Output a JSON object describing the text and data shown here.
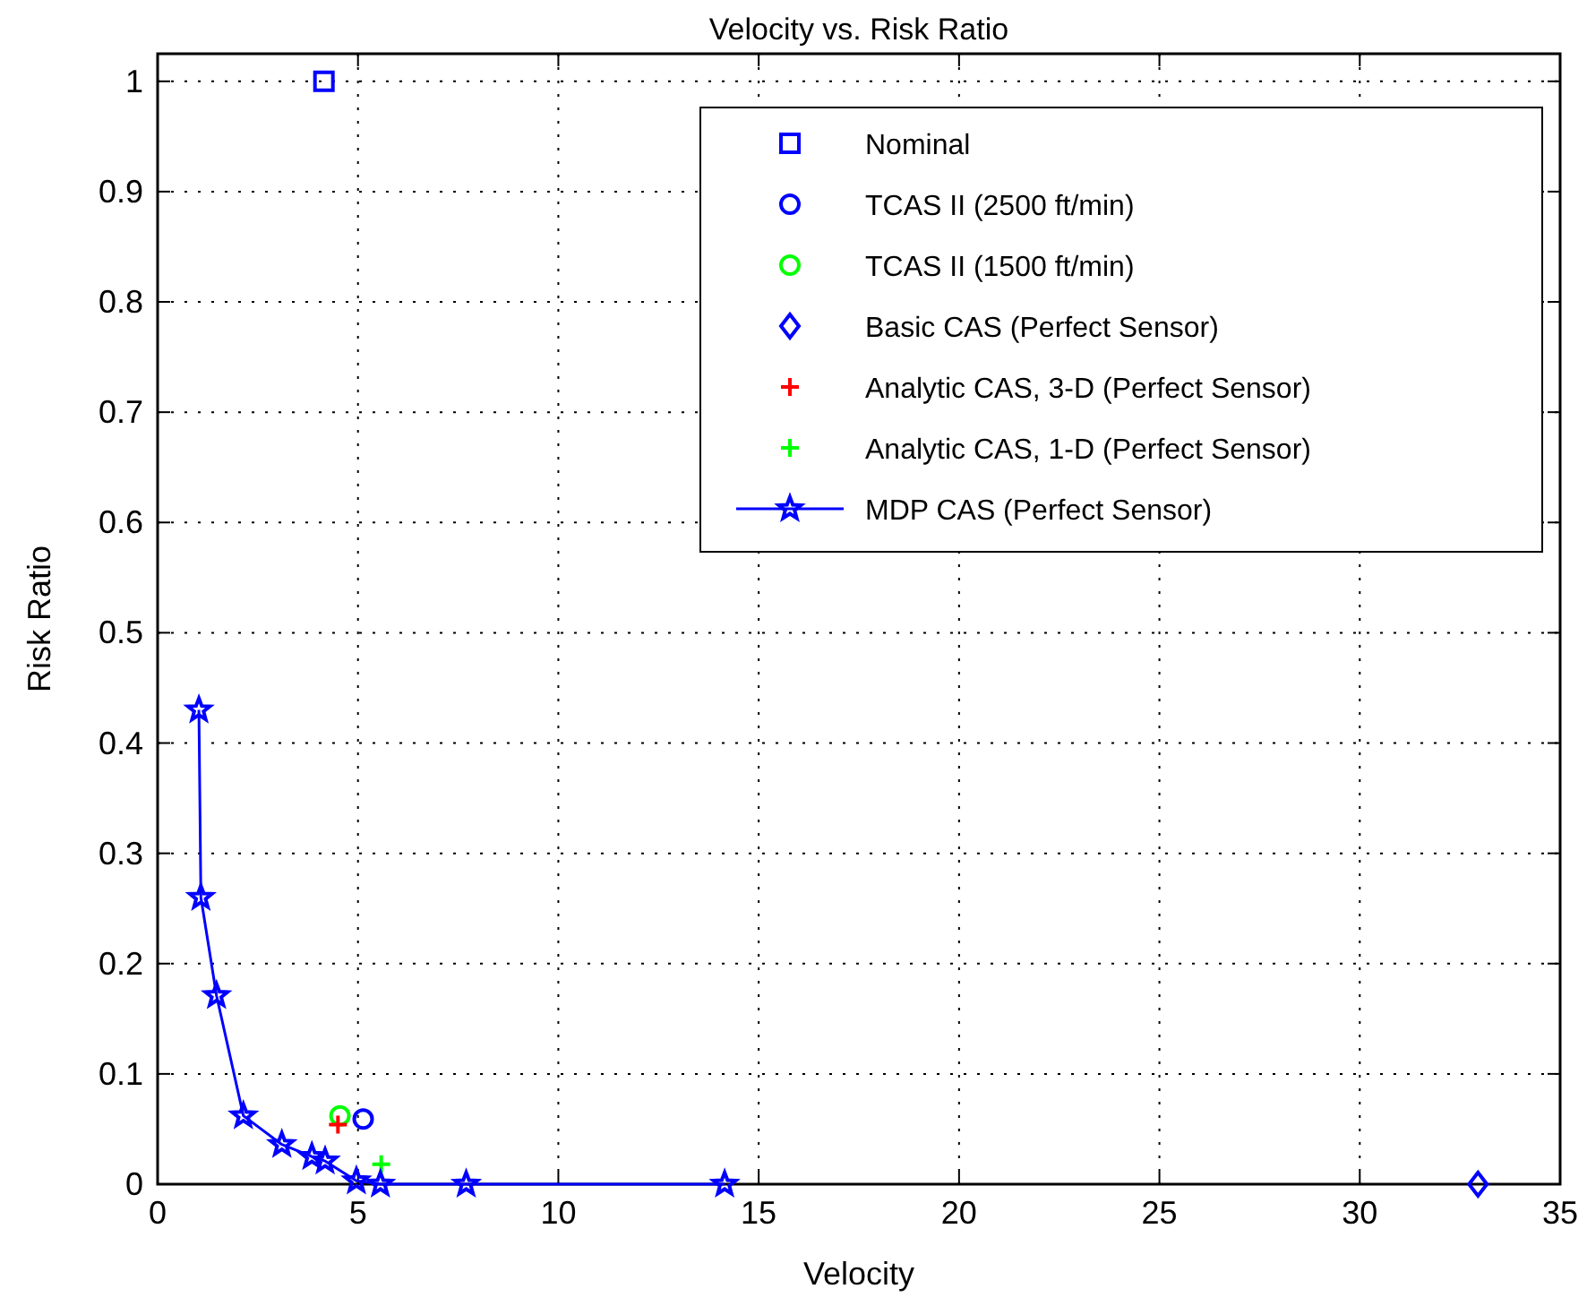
{
  "chart_data": {
    "type": "scatter",
    "title": "Velocity vs. Risk Ratio",
    "xlabel": "Velocity",
    "ylabel": "Risk Ratio",
    "xlim": [
      0,
      35
    ],
    "xticks": [
      0,
      5,
      10,
      15,
      20,
      25,
      30,
      35
    ],
    "ylim": [
      0,
      1.025
    ],
    "yticks": [
      0,
      0.1,
      0.2,
      0.3,
      0.4,
      0.5,
      0.6,
      0.7,
      0.8,
      0.9,
      1
    ],
    "grid": true,
    "legend": "top right",
    "series": [
      {
        "name": "Nominal",
        "marker": "square",
        "color": "#0000ff",
        "x": [
          4.15
        ],
        "values": [
          1
        ]
      },
      {
        "name": "TCAS II (2500 ft/min)",
        "marker": "circle",
        "color": "#0000ff",
        "x": [
          5.13
        ],
        "values": [
          0.059
        ]
      },
      {
        "name": "TCAS II (1500 ft/min)",
        "marker": "circle",
        "color": "#00ff00",
        "x": [
          4.55
        ],
        "values": [
          0.062
        ]
      },
      {
        "name": "Basic CAS (Perfect Sensor)",
        "marker": "diamond",
        "color": "#0000ff",
        "x": [
          32.95
        ],
        "values": [
          0
        ]
      },
      {
        "name": "Analytic CAS, 3-D (Perfect Sensor)",
        "marker": "cross",
        "color": "#ff0000",
        "x": [
          4.5
        ],
        "values": [
          0.054
        ]
      },
      {
        "name": "Analytic CAS, 1-D (Perfect Sensor)",
        "marker": "cross",
        "color": "#00ff00",
        "x": [
          5.58
        ],
        "values": [
          0.018
        ]
      },
      {
        "name": "MDP CAS (Perfect Sensor)",
        "type": "line",
        "marker": "star",
        "line_style": "solid",
        "color": "#0000ff",
        "x": [
          1.03,
          1.08,
          1.47,
          2.14,
          3.1,
          3.85,
          4.18,
          4.96,
          5.56,
          7.7,
          14.15
        ],
        "values": [
          0.43,
          0.26,
          0.171,
          0.062,
          0.036,
          0.025,
          0.021,
          0.003,
          0,
          0,
          0
        ]
      }
    ]
  }
}
